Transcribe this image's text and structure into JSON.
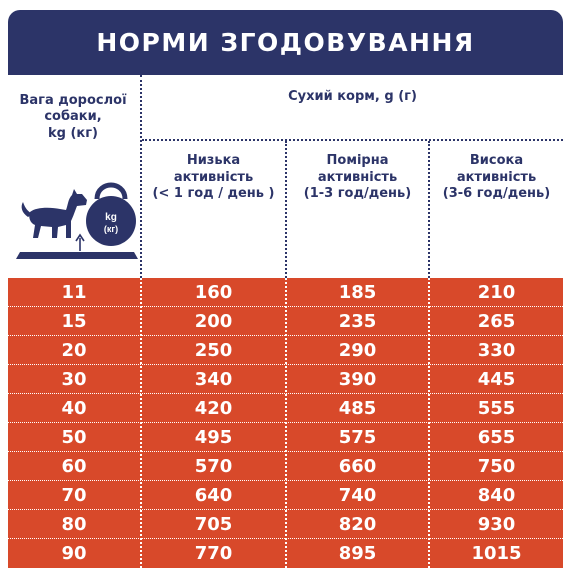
{
  "title": "НОРМИ ЗГОДОВУВАННЯ",
  "columns": {
    "weight": "Вага дорослої\nсобаки,\nkg (кг)",
    "dry_food": "Сухий корм, g (г)",
    "activity": [
      "Низька\nактивність\n(< 1 год / день )",
      "Помірна\nактивність\n(1-3 год/день)",
      "Висока\nактивність\n(3-6 год/день)"
    ]
  },
  "kettlebell": {
    "line1": "kg",
    "line2": "(кг)"
  },
  "rows": [
    [
      "11",
      "160",
      "185",
      "210"
    ],
    [
      "15",
      "200",
      "235",
      "265"
    ],
    [
      "20",
      "250",
      "290",
      "330"
    ],
    [
      "30",
      "340",
      "390",
      "445"
    ],
    [
      "40",
      "420",
      "485",
      "555"
    ],
    [
      "50",
      "495",
      "575",
      "655"
    ],
    [
      "60",
      "570",
      "660",
      "750"
    ],
    [
      "70",
      "640",
      "740",
      "840"
    ],
    [
      "80",
      "705",
      "820",
      "930"
    ],
    [
      "90",
      "770",
      "895",
      "1015"
    ]
  ],
  "colors": {
    "navy": "#2c3468",
    "orange": "#d8492a",
    "white": "#ffffff"
  },
  "icons": [
    "dog-icon",
    "kettlebell-icon",
    "scale-arrow-icon"
  ]
}
